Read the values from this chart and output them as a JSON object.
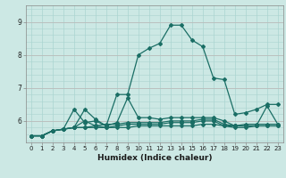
{
  "xlabel": "Humidex (Indice chaleur)",
  "background_color": "#cce8e4",
  "grid_color_main": "#aad4d0",
  "grid_color_red": "#d4a0a0",
  "line_color": "#1a6e65",
  "xlim": [
    -0.5,
    23.5
  ],
  "ylim": [
    5.35,
    9.5
  ],
  "yticks": [
    6,
    7,
    8,
    9
  ],
  "xticks": [
    0,
    1,
    2,
    3,
    4,
    5,
    6,
    7,
    8,
    9,
    10,
    11,
    12,
    13,
    14,
    15,
    16,
    17,
    18,
    19,
    20,
    21,
    22,
    23
  ],
  "series": [
    [
      5.55,
      5.55,
      5.7,
      5.75,
      5.8,
      6.35,
      6.05,
      5.85,
      6.8,
      6.8,
      8.0,
      8.2,
      8.35,
      8.9,
      8.9,
      8.45,
      8.25,
      7.3,
      7.25,
      6.2,
      6.25,
      6.35,
      6.5,
      6.5
    ],
    [
      5.55,
      5.55,
      5.7,
      5.75,
      6.35,
      5.95,
      6.0,
      5.85,
      5.95,
      6.7,
      6.1,
      6.1,
      6.05,
      6.1,
      6.1,
      6.1,
      6.1,
      6.1,
      6.0,
      5.85,
      5.9,
      5.9,
      5.9,
      5.9
    ],
    [
      5.55,
      5.55,
      5.7,
      5.75,
      5.8,
      5.8,
      5.85,
      5.9,
      5.9,
      5.95,
      5.95,
      5.95,
      5.95,
      6.0,
      6.0,
      6.0,
      6.05,
      6.05,
      5.9,
      5.85,
      5.85,
      5.85,
      5.85,
      5.85
    ],
    [
      5.55,
      5.55,
      5.7,
      5.75,
      5.8,
      6.0,
      5.85,
      5.8,
      5.85,
      5.9,
      5.9,
      5.9,
      5.9,
      5.95,
      5.95,
      5.95,
      6.0,
      6.0,
      5.85,
      5.8,
      5.8,
      5.85,
      6.45,
      5.9
    ],
    [
      5.55,
      5.55,
      5.7,
      5.75,
      5.8,
      5.8,
      5.8,
      5.8,
      5.8,
      5.8,
      5.85,
      5.85,
      5.85,
      5.85,
      5.85,
      5.85,
      5.9,
      5.9,
      5.85,
      5.85,
      5.85,
      5.85,
      5.85,
      5.85
    ]
  ]
}
